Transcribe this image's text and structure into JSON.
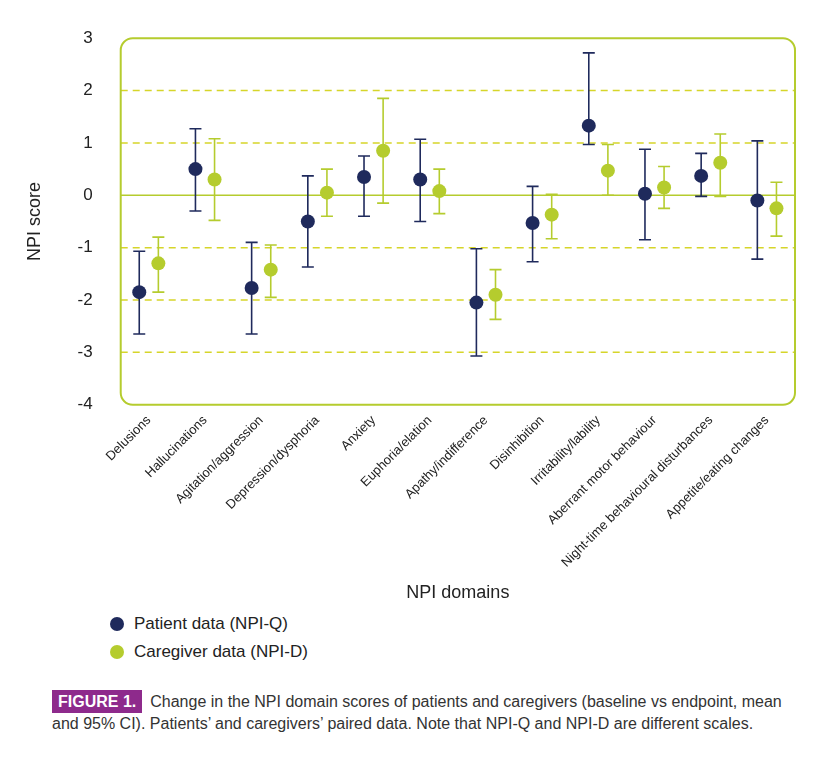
{
  "chart_data": {
    "type": "errorbar",
    "x_label": "NPI domains",
    "y_label": "NPI score",
    "categories": [
      "Delusions",
      "Hallucinations",
      "Agitation/aggression",
      "Depression/dysphoria",
      "Anxiety",
      "Euphoria/elation",
      "Apathy/indifference",
      "Disinhibition",
      "Irritability/lability",
      "Aberrant motor behaviour",
      "Night-time behavioural disturbances",
      "Appetite/eating changes"
    ],
    "series": [
      {
        "name": "Patient data (NPI-Q)",
        "color": "#1f2a5c",
        "values": [
          -1.85,
          0.5,
          -1.77,
          -0.5,
          0.35,
          0.3,
          -2.05,
          -0.53,
          1.33,
          0.03,
          0.37,
          -0.1
        ],
        "ci_low": [
          -2.65,
          -0.3,
          -2.65,
          -1.37,
          -0.4,
          -0.5,
          -3.07,
          -1.27,
          0.97,
          -0.85,
          -0.02,
          -1.22
        ],
        "ci_high": [
          -1.07,
          1.27,
          -0.9,
          0.37,
          0.75,
          1.07,
          -1.02,
          0.17,
          2.72,
          0.88,
          0.8,
          1.04
        ]
      },
      {
        "name": "Caregiver data (NPI-D)",
        "color": "#b5cc2e",
        "values": [
          -1.3,
          0.3,
          -1.42,
          0.05,
          0.85,
          0.08,
          -1.9,
          -0.37,
          0.47,
          0.15,
          0.62,
          -0.25
        ],
        "ci_low": [
          -1.85,
          -0.48,
          -1.95,
          -0.4,
          -0.15,
          -0.35,
          -2.37,
          -0.83,
          0,
          -0.25,
          -0.02,
          -0.78
        ],
        "ci_high": [
          -0.8,
          1.08,
          -0.95,
          0.5,
          1.85,
          0.5,
          -1.42,
          0.02,
          0.97,
          0.55,
          1.17,
          0.25
        ]
      }
    ],
    "ylim": [
      -4,
      3
    ],
    "yticks": [
      -4,
      -3,
      -2,
      -1,
      0,
      1,
      2,
      3
    ],
    "grid": true,
    "legend": "bottom-left",
    "caption_label": "FIGURE 1.",
    "caption": "Change in the NPI domain scores of patients and caregivers (baseline vs endpoint, mean and 95% CI). Patients’ and caregivers’ paired data. Note that NPI-Q and NPI-D are different scales."
  }
}
